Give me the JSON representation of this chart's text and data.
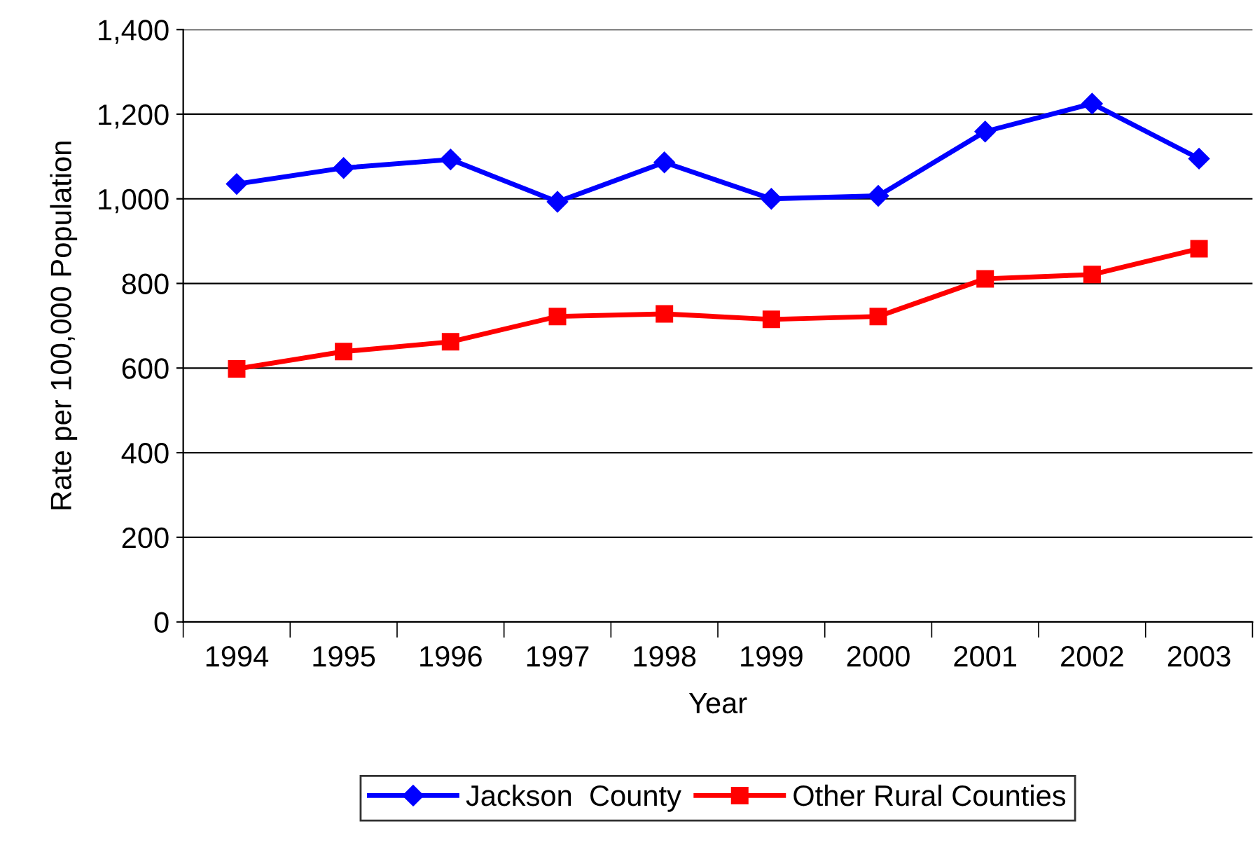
{
  "chart_data": {
    "type": "line",
    "xlabel": "Year",
    "ylabel": "Rate per 100,000 Population",
    "categories": [
      "1994",
      "1995",
      "1996",
      "1997",
      "1998",
      "1999",
      "2000",
      "2001",
      "2002",
      "2003"
    ],
    "series": [
      {
        "name": "Jackson  County",
        "color": "#0000ff",
        "marker": "diamond",
        "values": [
          1035,
          1073,
          1093,
          993,
          1086,
          1000,
          1007,
          1159,
          1225,
          1095
        ]
      },
      {
        "name": "Other Rural Counties",
        "color": "#ff0000",
        "marker": "square",
        "values": [
          598,
          639,
          662,
          722,
          728,
          715,
          722,
          811,
          821,
          882
        ]
      }
    ],
    "ylim": [
      0,
      1400
    ],
    "yticks": [
      {
        "value": 0,
        "label": "0"
      },
      {
        "value": 200,
        "label": "200"
      },
      {
        "value": 400,
        "label": "400"
      },
      {
        "value": 600,
        "label": "600"
      },
      {
        "value": 800,
        "label": "800"
      },
      {
        "value": 1000,
        "label": "1,000"
      },
      {
        "value": 1200,
        "label": "1,200"
      },
      {
        "value": 1400,
        "label": "1,400"
      }
    ],
    "grid": "y",
    "legend": "bottom",
    "line_style": "solid"
  }
}
